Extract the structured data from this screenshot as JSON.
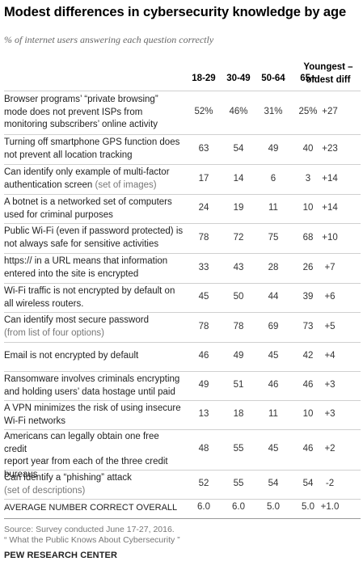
{
  "title": "Modest differences in cybersecurity knowledge by age",
  "subtitle": "% of internet users answering each question correctly",
  "diff_header_lines": [
    "Youngest –",
    "oldest diff"
  ],
  "chart_data": {
    "type": "table",
    "columns": [
      "18-29",
      "30-49",
      "50-64",
      "65+"
    ],
    "diff_header": "Youngest – oldest diff",
    "rows": [
      {
        "label_lines": [
          "Browser programs’ “private browsing”",
          "mode does not prevent ISPs from",
          "monitoring subscribers’ online activity"
        ],
        "sub": "",
        "values": [
          "52%",
          "46%",
          "31%",
          "25%"
        ],
        "diff": "+27"
      },
      {
        "label_lines": [
          "Turning off smartphone GPS function does",
          "not prevent all location tracking"
        ],
        "sub": "",
        "values": [
          "63",
          "54",
          "49",
          "40"
        ],
        "diff": "+23"
      },
      {
        "label_lines": [
          "Can identify only example of multi-factor",
          "authentication screen"
        ],
        "sub": "(set of images)",
        "values": [
          "17",
          "14",
          "6",
          "3"
        ],
        "diff": "+14"
      },
      {
        "label_lines": [
          "A botnet is a networked set of computers",
          "used for criminal purposes"
        ],
        "sub": "",
        "values": [
          "24",
          "19",
          "11",
          "10"
        ],
        "diff": "+14"
      },
      {
        "label_lines": [
          "Public Wi-Fi (even if password protected) is",
          "not always safe for sensitive activities"
        ],
        "sub": "",
        "values": [
          "78",
          "72",
          "75",
          "68"
        ],
        "diff": "+10"
      },
      {
        "label_lines": [
          "https:// in a URL means that information",
          "entered into the site is encrypted"
        ],
        "sub": "",
        "values": [
          "33",
          "43",
          "28",
          "26"
        ],
        "diff": "+7"
      },
      {
        "label_lines": [
          "Wi-Fi traffic is not encrypted by default on",
          "all wireless routers."
        ],
        "sub": "",
        "values": [
          "45",
          "50",
          "44",
          "39"
        ],
        "diff": "+6"
      },
      {
        "label_lines": [
          "Can identify most secure password"
        ],
        "sub": "(from list of four options)",
        "values": [
          "78",
          "78",
          "69",
          "73"
        ],
        "diff": "+5"
      },
      {
        "label_lines": [
          "Email is not encrypted by default"
        ],
        "sub": "",
        "values": [
          "46",
          "49",
          "45",
          "42"
        ],
        "diff": "+4"
      },
      {
        "label_lines": [
          "Ransomware involves criminals encrypting",
          "and holding users’ data hostage until paid"
        ],
        "sub": "",
        "values": [
          "49",
          "51",
          "46",
          "46"
        ],
        "diff": "+3"
      },
      {
        "label_lines": [
          "A VPN minimizes the risk of using insecure",
          "Wi-Fi networks"
        ],
        "sub": "",
        "values": [
          "13",
          "18",
          "11",
          "10"
        ],
        "diff": "+3"
      },
      {
        "label_lines": [
          "Americans can legally obtain one free credit",
          "report year from each of the three credit",
          "bureaus"
        ],
        "sub": "",
        "values": [
          "48",
          "55",
          "45",
          "46"
        ],
        "diff": "+2"
      },
      {
        "label_lines": [
          "Can identify a “phishing” attack"
        ],
        "sub": "(set of descriptions)",
        "values": [
          "52",
          "55",
          "54",
          "54"
        ],
        "diff": "-2"
      }
    ],
    "average_row": {
      "label": "AVERAGE NUMBER CORRECT OVERALL",
      "values": [
        "6.0",
        "6.0",
        "5.0",
        "5.0"
      ],
      "diff": "+1.0"
    }
  },
  "notes": [
    "Source: Survey conducted June 17-27, 2016.",
    "“ What the Public Knows About Cybersecurity ”"
  ],
  "brand": "PEW RESEARCH CENTER"
}
